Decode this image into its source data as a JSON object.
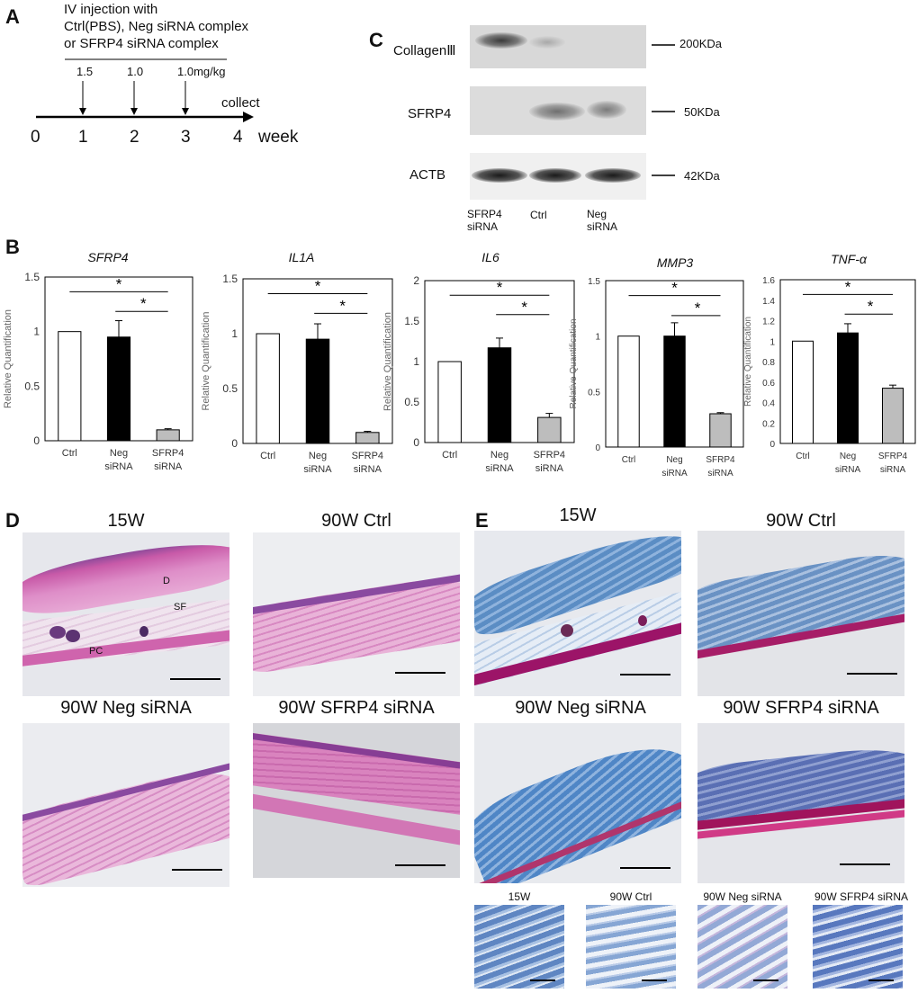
{
  "panelA": {
    "letter": "A",
    "injection_lines": [
      "IV injection with",
      "Ctrl(PBS), Neg siRNA complex",
      "or SFRP4 siRNA complex"
    ],
    "doses": [
      "1.5",
      "1.0",
      "1.0mg/kg"
    ],
    "collect": "collect",
    "ticks": [
      "0",
      "1",
      "2",
      "3",
      "4"
    ],
    "unit": "week"
  },
  "panelC": {
    "letter": "C",
    "rows": [
      {
        "label": "CollagenⅢ",
        "size": "200KDa"
      },
      {
        "label": "SFRP4",
        "size": "50KDa"
      },
      {
        "label": "ACTB",
        "size": "42KDa"
      }
    ],
    "lanes": [
      {
        "line1": "SFRP4",
        "line2": "siRNA"
      },
      {
        "line1": "Ctrl",
        "line2": ""
      },
      {
        "line1": "Neg",
        "line2": "siRNA"
      }
    ]
  },
  "panelB": {
    "letter": "B",
    "ylabel": "Relative Quantification",
    "bar_colors": [
      "#ffffff",
      "#000000",
      "#bdbdbd"
    ],
    "star": "*"
  },
  "chart_data": [
    {
      "type": "bar",
      "title": "SFRP4",
      "ylabel": "Relative Quantification",
      "ylim": [
        0,
        1.5
      ],
      "yticks": [
        "0",
        "0.5",
        "1",
        "1.5"
      ],
      "ytick_vals": [
        0,
        0.5,
        1,
        1.5
      ],
      "categories": [
        [
          "Ctrl"
        ],
        [
          "Neg",
          "siRNA"
        ],
        [
          "SFRP4",
          "siRNA"
        ]
      ],
      "values": [
        1.0,
        0.95,
        0.1
      ],
      "errors": [
        0,
        0.15,
        0.01
      ]
    },
    {
      "type": "bar",
      "title": "IL1A",
      "ylabel": "Relative Quantification",
      "ylim": [
        0,
        1.5
      ],
      "yticks": [
        "0",
        "0.5",
        "1",
        "1.5"
      ],
      "ytick_vals": [
        0,
        0.5,
        1,
        1.5
      ],
      "categories": [
        [
          "Ctrl"
        ],
        [
          "Neg",
          "siRNA"
        ],
        [
          "SFRP4",
          "siRNA"
        ]
      ],
      "values": [
        1.0,
        0.95,
        0.1
      ],
      "errors": [
        0,
        0.14,
        0.01
      ]
    },
    {
      "type": "bar",
      "title": "IL6",
      "ylabel": "Relative Quantification",
      "ylim": [
        0,
        2
      ],
      "yticks": [
        "0",
        "0.5",
        "1",
        "1.5",
        "2"
      ],
      "ytick_vals": [
        0,
        0.5,
        1,
        1.5,
        2
      ],
      "categories": [
        [
          "Ctrl"
        ],
        [
          "Neg",
          "siRNA"
        ],
        [
          "SFRP4",
          "siRNA"
        ]
      ],
      "values": [
        1.0,
        1.17,
        0.31
      ],
      "errors": [
        0,
        0.12,
        0.05
      ]
    },
    {
      "type": "bar",
      "title": "MMP3",
      "ylabel": "Relative Quantification",
      "ylim": [
        0,
        1.5
      ],
      "yticks": [
        "0",
        "0.5",
        "1",
        "1.5"
      ],
      "ytick_vals": [
        0,
        0.5,
        1,
        1.5
      ],
      "categories": [
        [
          "Ctrl"
        ],
        [
          "Neg",
          "siRNA"
        ],
        [
          "SFRP4",
          "siRNA"
        ]
      ],
      "values": [
        1.0,
        1.0,
        0.3
      ],
      "errors": [
        0,
        0.12,
        0.01
      ]
    },
    {
      "type": "bar",
      "title": "TNF-α",
      "ylabel": "Relative Quantification",
      "ylim": [
        0,
        1.6
      ],
      "yticks": [
        "0",
        "0.2",
        "0.4",
        "0.6",
        "0.8",
        "1",
        "1.2",
        "1.4",
        "1.6"
      ],
      "ytick_vals": [
        0,
        0.2,
        0.4,
        0.6,
        0.8,
        1,
        1.2,
        1.4,
        1.6
      ],
      "categories": [
        [
          "Ctrl"
        ],
        [
          "Neg",
          "siRNA"
        ],
        [
          "SFRP4",
          "siRNA"
        ]
      ],
      "values": [
        1.0,
        1.08,
        0.54
      ],
      "errors": [
        0,
        0.09,
        0.03
      ]
    }
  ],
  "panelD": {
    "letter": "D",
    "titles": [
      "15W",
      "90W Ctrl",
      "90W Neg siRNA",
      "90W SFRP4 siRNA"
    ],
    "annotations": [
      "D",
      "SF",
      "PC"
    ]
  },
  "panelE": {
    "letter": "E",
    "titles": [
      "15W",
      "90W Ctrl",
      "90W Neg siRNA",
      "90W SFRP4 siRNA"
    ],
    "zoom_titles": [
      "15W",
      "90W Ctrl",
      "90W Neg siRNA",
      "90W SFRP4 siRNA"
    ]
  }
}
